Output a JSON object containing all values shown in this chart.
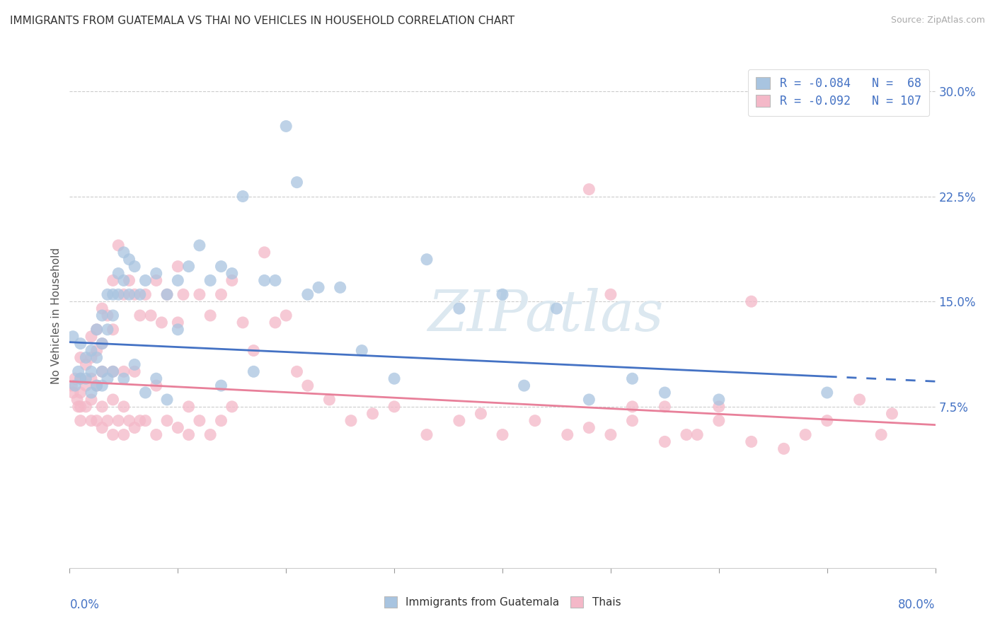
{
  "title": "IMMIGRANTS FROM GUATEMALA VS THAI NO VEHICLES IN HOUSEHOLD CORRELATION CHART",
  "source": "Source: ZipAtlas.com",
  "ylabel": "No Vehicles in Household",
  "ytick_values": [
    0.075,
    0.15,
    0.225,
    0.3
  ],
  "ytick_labels": [
    "7.5%",
    "15.0%",
    "22.5%",
    "30.0%"
  ],
  "xtick_values": [
    0.0,
    0.1,
    0.2,
    0.3,
    0.4,
    0.5,
    0.6,
    0.7,
    0.8
  ],
  "xtick_labels": [
    "",
    "",
    "",
    "",
    "",
    "",
    "",
    "",
    ""
  ],
  "xlim": [
    0.0,
    0.8
  ],
  "ylim": [
    -0.04,
    0.32
  ],
  "color_guatemala": "#a8c4e0",
  "color_thai": "#f4b8c8",
  "trendline_color_guatemala": "#4472c4",
  "trendline_color_thai": "#e8809a",
  "background_color": "#ffffff",
  "watermark_color": "#dce8f0",
  "series1_label": "Immigrants from Guatemala",
  "series2_label": "Thais",
  "guatemala_x": [
    0.003,
    0.005,
    0.008,
    0.01,
    0.01,
    0.015,
    0.015,
    0.02,
    0.02,
    0.02,
    0.025,
    0.025,
    0.025,
    0.03,
    0.03,
    0.03,
    0.03,
    0.035,
    0.035,
    0.035,
    0.04,
    0.04,
    0.04,
    0.045,
    0.045,
    0.05,
    0.05,
    0.05,
    0.055,
    0.055,
    0.06,
    0.06,
    0.065,
    0.07,
    0.07,
    0.08,
    0.08,
    0.09,
    0.09,
    0.1,
    0.1,
    0.11,
    0.12,
    0.13,
    0.14,
    0.14,
    0.15,
    0.16,
    0.17,
    0.18,
    0.19,
    0.2,
    0.21,
    0.22,
    0.23,
    0.25,
    0.27,
    0.3,
    0.33,
    0.36,
    0.4,
    0.42,
    0.45,
    0.48,
    0.52,
    0.55,
    0.6,
    0.7
  ],
  "guatemala_y": [
    0.125,
    0.09,
    0.1,
    0.12,
    0.095,
    0.11,
    0.095,
    0.115,
    0.1,
    0.085,
    0.13,
    0.11,
    0.09,
    0.14,
    0.12,
    0.1,
    0.09,
    0.155,
    0.13,
    0.095,
    0.155,
    0.14,
    0.1,
    0.17,
    0.155,
    0.185,
    0.165,
    0.095,
    0.18,
    0.155,
    0.175,
    0.105,
    0.155,
    0.165,
    0.085,
    0.17,
    0.095,
    0.155,
    0.08,
    0.165,
    0.13,
    0.175,
    0.19,
    0.165,
    0.175,
    0.09,
    0.17,
    0.225,
    0.1,
    0.165,
    0.165,
    0.275,
    0.235,
    0.155,
    0.16,
    0.16,
    0.115,
    0.095,
    0.18,
    0.145,
    0.155,
    0.09,
    0.145,
    0.08,
    0.095,
    0.085,
    0.08,
    0.085
  ],
  "thai_x": [
    0.002,
    0.003,
    0.005,
    0.007,
    0.008,
    0.01,
    0.01,
    0.01,
    0.01,
    0.01,
    0.015,
    0.015,
    0.015,
    0.02,
    0.02,
    0.02,
    0.02,
    0.02,
    0.025,
    0.025,
    0.025,
    0.025,
    0.03,
    0.03,
    0.03,
    0.03,
    0.03,
    0.035,
    0.035,
    0.04,
    0.04,
    0.04,
    0.04,
    0.04,
    0.045,
    0.045,
    0.05,
    0.05,
    0.05,
    0.05,
    0.055,
    0.055,
    0.06,
    0.06,
    0.06,
    0.065,
    0.065,
    0.07,
    0.07,
    0.075,
    0.08,
    0.08,
    0.08,
    0.085,
    0.09,
    0.09,
    0.1,
    0.1,
    0.1,
    0.105,
    0.11,
    0.11,
    0.12,
    0.12,
    0.13,
    0.13,
    0.14,
    0.14,
    0.15,
    0.15,
    0.16,
    0.17,
    0.18,
    0.19,
    0.2,
    0.21,
    0.22,
    0.24,
    0.26,
    0.28,
    0.3,
    0.33,
    0.36,
    0.38,
    0.4,
    0.43,
    0.46,
    0.48,
    0.5,
    0.52,
    0.55,
    0.58,
    0.6,
    0.63,
    0.66,
    0.68,
    0.7,
    0.73,
    0.75,
    0.76,
    0.48,
    0.5,
    0.52,
    0.55,
    0.57,
    0.6,
    0.63
  ],
  "thai_y": [
    0.09,
    0.085,
    0.095,
    0.08,
    0.075,
    0.11,
    0.095,
    0.085,
    0.075,
    0.065,
    0.105,
    0.09,
    0.075,
    0.125,
    0.11,
    0.095,
    0.08,
    0.065,
    0.13,
    0.115,
    0.09,
    0.065,
    0.145,
    0.12,
    0.1,
    0.075,
    0.06,
    0.14,
    0.065,
    0.165,
    0.13,
    0.1,
    0.08,
    0.055,
    0.19,
    0.065,
    0.155,
    0.1,
    0.075,
    0.055,
    0.165,
    0.065,
    0.155,
    0.1,
    0.06,
    0.14,
    0.065,
    0.155,
    0.065,
    0.14,
    0.165,
    0.09,
    0.055,
    0.135,
    0.155,
    0.065,
    0.175,
    0.135,
    0.06,
    0.155,
    0.075,
    0.055,
    0.155,
    0.065,
    0.14,
    0.055,
    0.155,
    0.065,
    0.165,
    0.075,
    0.135,
    0.115,
    0.185,
    0.135,
    0.14,
    0.1,
    0.09,
    0.08,
    0.065,
    0.07,
    0.075,
    0.055,
    0.065,
    0.07,
    0.055,
    0.065,
    0.055,
    0.06,
    0.055,
    0.065,
    0.05,
    0.055,
    0.075,
    0.05,
    0.045,
    0.055,
    0.065,
    0.08,
    0.055,
    0.07,
    0.23,
    0.155,
    0.075,
    0.075,
    0.055,
    0.065,
    0.15
  ],
  "guat_trendline_x0": 0.0,
  "guat_trendline_x_solid_end": 0.7,
  "guat_trendline_x_end": 0.8,
  "guat_trendline_y0": 0.121,
  "guat_trendline_y_end": 0.093,
  "thai_trendline_x0": 0.0,
  "thai_trendline_x_end": 0.8,
  "thai_trendline_y0": 0.093,
  "thai_trendline_y_end": 0.062
}
